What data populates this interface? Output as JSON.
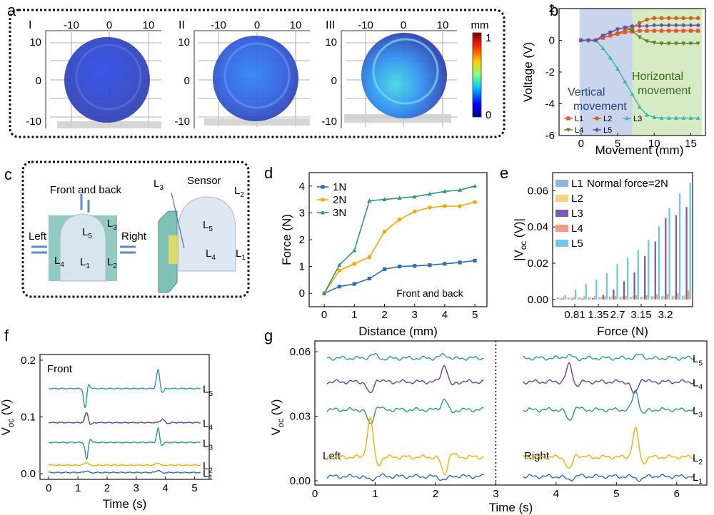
{
  "colors": {
    "L1": "#e8533a",
    "L2": "#c8661e",
    "L3": "#3bb8a8",
    "L4": "#5f7f2a",
    "L5": "#6a4fa8",
    "bar_L1": "#8cb6dc",
    "bar_L2": "#f7d37a",
    "bar_L3": "#7b5cb0",
    "bar_L4": "#f29b80",
    "bar_L5": "#6ec8ea",
    "d_1N": "#2f6db5",
    "d_2N": "#f5a800",
    "d_3N": "#2a9a78",
    "trace_L5": "#2a95b2",
    "trace_L4": "#6a3ca0",
    "trace_L3": "#2a9a80",
    "trace_L2": "#f5b000",
    "trace_L1": "#2a6db0",
    "vertical_region": "#c9d5ec",
    "horizontal_region": "#d6eac3"
  },
  "panel_a": {
    "label": "a",
    "unit": "mm",
    "colorbar_ticks": [
      "1",
      "0"
    ],
    "subplots": [
      {
        "numeral": "I",
        "x_ticks": [
          "-10",
          "0",
          "10"
        ],
        "y_ticks": [
          "10",
          "0",
          "-10"
        ]
      },
      {
        "numeral": "II",
        "x_ticks": [
          "-10",
          "0",
          "10"
        ],
        "y_ticks": [
          "10",
          "0",
          "-10"
        ]
      },
      {
        "numeral": "III",
        "x_ticks": [
          "-10",
          "0",
          "10"
        ],
        "y_ticks": [
          "10",
          "0",
          "-10"
        ]
      }
    ]
  },
  "panel_c": {
    "label": "c",
    "front_back": "Front and back",
    "left": "Left",
    "right": "Right",
    "sensor": "Sensor",
    "electrodes": [
      "L",
      "L",
      "L",
      "L",
      "L"
    ],
    "subscripts": [
      "1",
      "2",
      "3",
      "4",
      "5"
    ]
  },
  "chart_data": [
    {
      "panel": "b",
      "type": "line",
      "xlabel": "Movement  (mm)",
      "ylabel": "Voltage (V)",
      "xlim": [
        -3,
        17
      ],
      "ylim": [
        -6,
        2
      ],
      "x_ticks": [
        0,
        5,
        10,
        15
      ],
      "y_ticks": [
        2,
        0,
        -2,
        -4,
        -6
      ],
      "regions": [
        {
          "label_lines": [
            "Vertical",
            "movement"
          ],
          "x_range": [
            -0.2,
            7
          ]
        },
        {
          "label_lines": [
            "Horizontal",
            "movement"
          ],
          "x_range": [
            7,
            16.5
          ]
        }
      ],
      "x": [
        0,
        1,
        2,
        3,
        4,
        5,
        6,
        7,
        8,
        9,
        10,
        11,
        12,
        13,
        14,
        15,
        16
      ],
      "series": [
        {
          "name": "L1",
          "values": [
            0,
            0,
            0,
            0.15,
            0.3,
            0.4,
            0.5,
            0.55,
            0.6,
            0.6,
            0.6,
            0.6,
            0.6,
            0.6,
            0.6,
            0.6,
            0.6
          ]
        },
        {
          "name": "L2",
          "values": [
            0,
            0,
            0,
            0.2,
            0.3,
            0.45,
            0.6,
            0.8,
            1.1,
            1.3,
            1.4,
            1.4,
            1.4,
            1.4,
            1.4,
            1.4,
            1.4
          ]
        },
        {
          "name": "L3",
          "values": [
            0,
            0,
            0,
            -0.5,
            -1.1,
            -1.8,
            -2.6,
            -3.4,
            -4.2,
            -4.7,
            -4.85,
            -4.9,
            -4.9,
            -4.9,
            -4.9,
            -4.9,
            -4.9
          ]
        },
        {
          "name": "L4",
          "values": [
            0,
            0,
            0,
            0.3,
            0.5,
            0.7,
            0.8,
            0.6,
            0.2,
            -0.05,
            -0.15,
            -0.2,
            -0.2,
            -0.2,
            -0.2,
            -0.2,
            -0.2
          ]
        },
        {
          "name": "L5",
          "values": [
            0,
            0,
            0,
            0.3,
            0.5,
            0.7,
            0.8,
            0.9,
            0.9,
            0.9,
            0.95,
            0.95,
            0.95,
            0.95,
            0.95,
            0.95,
            0.95
          ]
        }
      ]
    },
    {
      "panel": "d",
      "type": "line",
      "xlabel": "Distance (mm)",
      "ylabel": "Force (N)",
      "xlim": [
        -0.5,
        5.4
      ],
      "ylim": [
        -0.5,
        4.5
      ],
      "x_ticks": [
        0,
        1,
        2,
        3,
        4,
        5
      ],
      "y_ticks": [
        0,
        1,
        2,
        3,
        4
      ],
      "annotation": "Front and back",
      "x": [
        0,
        0.5,
        1,
        1.5,
        2,
        2.5,
        3,
        3.5,
        4,
        4.5,
        5
      ],
      "series": [
        {
          "name": "1N",
          "values": [
            0,
            0.25,
            0.35,
            0.55,
            0.9,
            1.0,
            1.02,
            1.05,
            1.1,
            1.15,
            1.22
          ]
        },
        {
          "name": "2N",
          "values": [
            0,
            0.85,
            1.1,
            1.35,
            2.3,
            2.75,
            3.05,
            3.2,
            3.25,
            3.25,
            3.4
          ]
        },
        {
          "name": "3N",
          "values": [
            0,
            1.05,
            1.6,
            3.45,
            3.5,
            3.55,
            3.6,
            3.7,
            3.8,
            3.85,
            4.0
          ]
        }
      ]
    },
    {
      "panel": "e",
      "type": "bar",
      "xlabel": "Force (N)",
      "ylabel_main": "|V",
      "ylabel_sub": "oc",
      "ylabel_end": " (V)|",
      "annotation": "Normal force=2N",
      "ylim": [
        -0.004,
        0.07
      ],
      "y_ticks": [
        0.0,
        0.02,
        0.04,
        0.06
      ],
      "y_tick_labels": [
        "0.00",
        "0.02",
        "0.04",
        "0.06"
      ],
      "tick_labels": [
        "0.81",
        "1.35",
        "2.7",
        "3.15",
        "3.2"
      ],
      "series_names": [
        "L1",
        "L2",
        "L3",
        "L4",
        "L5"
      ],
      "groups": [
        [
          0.001,
          0.0012,
          0.0005,
          0.0015,
          0.0025
        ],
        [
          0.001,
          0.0012,
          0.0005,
          0.0015,
          0.0055
        ],
        [
          0.0012,
          0.0015,
          0.0005,
          0.0018,
          0.0085
        ],
        [
          0.0012,
          0.0015,
          0.0008,
          0.0018,
          0.011
        ],
        [
          0.0012,
          0.0015,
          0.0025,
          0.0018,
          0.0145
        ],
        [
          0.0015,
          0.0018,
          0.0055,
          0.002,
          0.0195
        ],
        [
          0.0015,
          0.0018,
          0.01,
          0.0022,
          0.023
        ],
        [
          0.0015,
          0.002,
          0.015,
          0.0025,
          0.0275
        ],
        [
          0.0015,
          0.002,
          0.024,
          0.0025,
          0.033
        ],
        [
          0.0018,
          0.002,
          0.032,
          0.003,
          0.0405
        ],
        [
          0.0018,
          0.0022,
          0.045,
          0.003,
          0.0505
        ],
        [
          0.0018,
          0.0022,
          0.0465,
          0.0035,
          0.0585
        ],
        [
          0.002,
          0.0025,
          0.051,
          0.005,
          0.0645
        ]
      ]
    },
    {
      "panel": "f",
      "type": "line",
      "xlabel": "Time (s)",
      "ylabel_main": "V",
      "ylabel_sub": "oc",
      "ylabel_end": " (V)",
      "annotation": "Front",
      "xlim": [
        -0.3,
        5.5
      ],
      "ylim": [
        -0.01,
        0.21
      ],
      "x_ticks": [
        0,
        1,
        2,
        3,
        4,
        5
      ],
      "y_ticks": [
        0.0,
        0.1,
        0.2
      ],
      "y_tick_labels": [
        "0.0",
        "0.1",
        "0.2"
      ],
      "t_range": [
        0,
        5.2
      ],
      "traces": [
        {
          "name": "L5",
          "label": "L",
          "sub": "5",
          "baseline": 0.15,
          "events": [
            {
              "t": 1.25,
              "a": -0.035,
              "w": 0.07
            },
            {
              "t": 3.75,
              "a": 0.033,
              "w": 0.08
            }
          ]
        },
        {
          "name": "L4",
          "label": "L",
          "sub": "4",
          "baseline": 0.09,
          "events": [
            {
              "t": 1.3,
              "a": 0.018,
              "w": 0.08
            },
            {
              "t": 3.9,
              "a": 0.006,
              "w": 0.1
            }
          ]
        },
        {
          "name": "L3",
          "label": "L",
          "sub": "3",
          "baseline": 0.055,
          "events": [
            {
              "t": 1.3,
              "a": -0.03,
              "w": 0.07
            },
            {
              "t": 3.75,
              "a": 0.025,
              "w": 0.07
            }
          ]
        },
        {
          "name": "L2",
          "label": "L",
          "sub": "2",
          "baseline": 0.015,
          "events": [
            {
              "t": 1.3,
              "a": 0.005,
              "w": 0.1
            },
            {
              "t": 3.75,
              "a": 0.004,
              "w": 0.1
            }
          ]
        },
        {
          "name": "L1",
          "label": "L",
          "sub": "1",
          "baseline": 0.002,
          "events": [
            {
              "t": 1.3,
              "a": 0.003,
              "w": 0.1
            },
            {
              "t": 3.75,
              "a": 0.004,
              "w": 0.1
            }
          ]
        }
      ]
    },
    {
      "panel": "g",
      "type": "line",
      "xlabel": "Time (s)",
      "ylabel_main": "V",
      "ylabel_sub": "oc",
      "ylabel_end": " (V)",
      "xlim": [
        0,
        6.5
      ],
      "ylim": [
        -0.002,
        0.065
      ],
      "x_ticks": [
        0,
        1,
        2,
        3,
        4,
        5,
        6
      ],
      "y_ticks": [
        0.0,
        0.03,
        0.06
      ],
      "y_tick_labels": [
        "0.00",
        "0.03",
        "0.06"
      ],
      "divider_x": 3,
      "segments": [
        {
          "annotation": "Left",
          "t_range": [
            0.2,
            2.8
          ]
        },
        {
          "annotation": "Right",
          "t_range": [
            3.45,
            6.3
          ]
        }
      ],
      "traces": [
        {
          "name": "L5",
          "label": "L",
          "sub": "5",
          "baseline": 0.057,
          "events": [
            {
              "t": 0.98,
              "a": 0.0015,
              "w": 0.1
            },
            {
              "t": 2.15,
              "a": 0.0015,
              "w": 0.1
            },
            {
              "t": 4.2,
              "a": 0.0012,
              "w": 0.1
            },
            {
              "t": 5.4,
              "a": 0.0015,
              "w": 0.1
            }
          ]
        },
        {
          "name": "L4",
          "label": "L",
          "sub": "4",
          "baseline": 0.046,
          "events": [
            {
              "t": 0.92,
              "a": -0.006,
              "w": 0.07
            },
            {
              "t": 2.15,
              "a": 0.008,
              "w": 0.07
            },
            {
              "t": 4.22,
              "a": 0.008,
              "w": 0.07
            },
            {
              "t": 5.3,
              "a": -0.006,
              "w": 0.07
            }
          ]
        },
        {
          "name": "L3",
          "label": "L",
          "sub": "3",
          "baseline": 0.033,
          "events": [
            {
              "t": 0.92,
              "a": -0.007,
              "w": 0.07
            },
            {
              "t": 2.15,
              "a": 0.005,
              "w": 0.07
            },
            {
              "t": 4.22,
              "a": -0.005,
              "w": 0.07
            },
            {
              "t": 5.32,
              "a": 0.009,
              "w": 0.07
            }
          ]
        },
        {
          "name": "L2",
          "label": "L",
          "sub": "2",
          "baseline": 0.011,
          "events": [
            {
              "t": 0.92,
              "a": 0.018,
              "w": 0.07
            },
            {
              "t": 2.15,
              "a": -0.008,
              "w": 0.07
            },
            {
              "t": 4.22,
              "a": -0.006,
              "w": 0.07
            },
            {
              "t": 5.32,
              "a": 0.013,
              "w": 0.07
            }
          ]
        },
        {
          "name": "L1",
          "label": "L",
          "sub": "1",
          "baseline": 0.002,
          "events": [
            {
              "t": 0.92,
              "a": -0.0015,
              "w": 0.1
            },
            {
              "t": 2.15,
              "a": -0.0015,
              "w": 0.1
            },
            {
              "t": 4.22,
              "a": -0.0015,
              "w": 0.1
            },
            {
              "t": 5.4,
              "a": -0.0015,
              "w": 0.1
            }
          ]
        }
      ]
    }
  ]
}
